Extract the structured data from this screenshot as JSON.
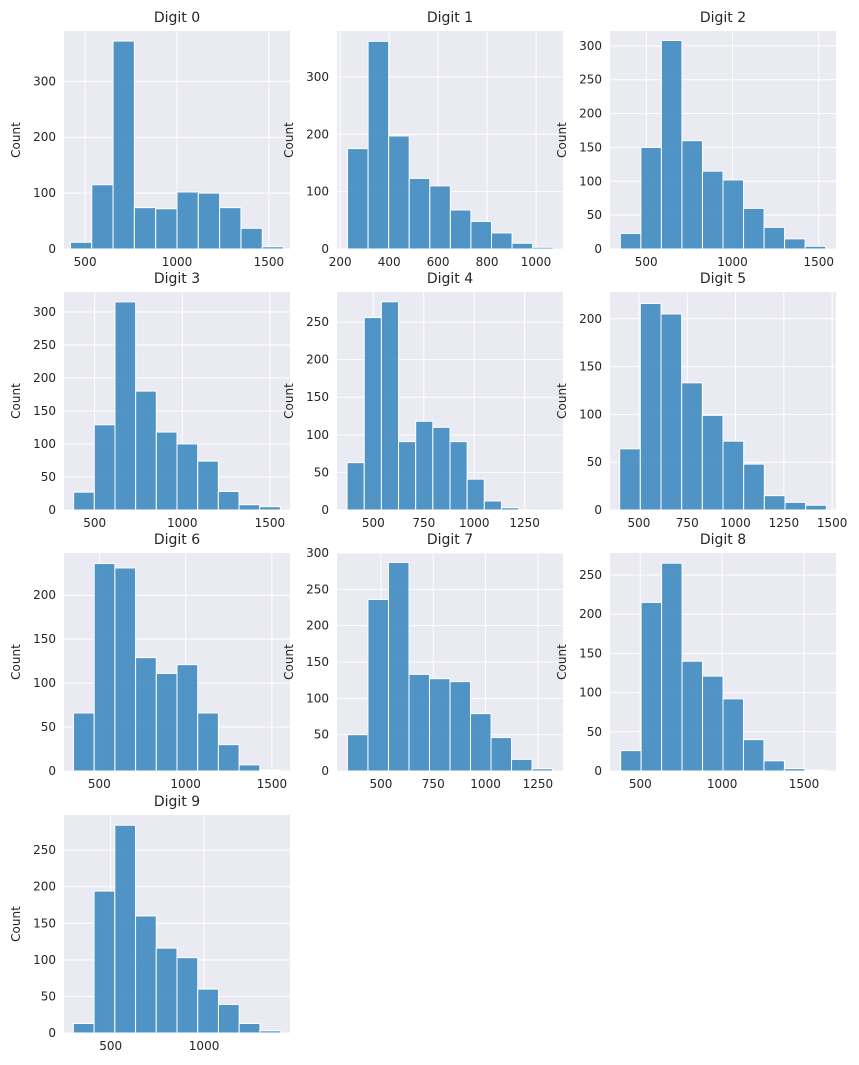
{
  "figure": {
    "background": "#ffffff",
    "plot_background": "#eaeaf2",
    "grid_color": "#ffffff",
    "bar_color": "#3a87bf"
  },
  "chart_data": [
    {
      "type": "bar",
      "title": "Digit 0",
      "xlabel": "",
      "ylabel": "Count",
      "bins": [
        [
          420,
          536
        ],
        [
          536,
          652
        ],
        [
          652,
          768
        ],
        [
          768,
          884
        ],
        [
          884,
          1000
        ],
        [
          1000,
          1116
        ],
        [
          1116,
          1232
        ],
        [
          1232,
          1348
        ],
        [
          1348,
          1464
        ],
        [
          1464,
          1580
        ]
      ],
      "values": [
        12,
        115,
        372,
        74,
        72,
        102,
        100,
        74,
        37,
        4
      ],
      "xlim": [
        385,
        1615
      ],
      "ylim": [
        0,
        390
      ],
      "xticks": [
        500,
        1000,
        1500
      ],
      "yticks": [
        0,
        100,
        200,
        300
      ],
      "grid": true
    },
    {
      "type": "bar",
      "title": "Digit 1",
      "xlabel": "",
      "ylabel": "Count",
      "bins": [
        [
          230,
          314
        ],
        [
          314,
          398
        ],
        [
          398,
          482
        ],
        [
          482,
          566
        ],
        [
          566,
          650
        ],
        [
          650,
          734
        ],
        [
          734,
          818
        ],
        [
          818,
          902
        ],
        [
          902,
          986
        ],
        [
          986,
          1070
        ]
      ],
      "values": [
        175,
        362,
        197,
        123,
        110,
        68,
        48,
        28,
        10,
        3
      ],
      "xlim": [
        187,
        1110
      ],
      "ylim": [
        0,
        380
      ],
      "xticks": [
        200,
        400,
        600,
        800,
        1000
      ],
      "yticks": [
        0,
        100,
        200,
        300
      ],
      "grid": true
    },
    {
      "type": "bar",
      "title": "Digit 2",
      "xlabel": "",
      "ylabel": "Count",
      "bins": [
        [
          350,
          469
        ],
        [
          469,
          588
        ],
        [
          588,
          707
        ],
        [
          707,
          826
        ],
        [
          826,
          945
        ],
        [
          945,
          1064
        ],
        [
          1064,
          1183
        ],
        [
          1183,
          1302
        ],
        [
          1302,
          1421
        ],
        [
          1421,
          1540
        ]
      ],
      "values": [
        23,
        150,
        308,
        160,
        115,
        102,
        60,
        32,
        15,
        4
      ],
      "xlim": [
        290,
        1600
      ],
      "ylim": [
        0,
        322
      ],
      "xticks": [
        500,
        1000,
        1500
      ],
      "yticks": [
        0,
        50,
        100,
        150,
        200,
        250,
        300
      ],
      "grid": true
    },
    {
      "type": "bar",
      "title": "Digit 3",
      "xlabel": "",
      "ylabel": "Count",
      "bins": [
        [
          380,
          498
        ],
        [
          498,
          616
        ],
        [
          616,
          734
        ],
        [
          734,
          852
        ],
        [
          852,
          970
        ],
        [
          970,
          1088
        ],
        [
          1088,
          1206
        ],
        [
          1206,
          1324
        ],
        [
          1324,
          1442
        ],
        [
          1442,
          1560
        ]
      ],
      "values": [
        27,
        129,
        315,
        180,
        118,
        100,
        74,
        28,
        8,
        5
      ],
      "xlim": [
        325,
        1615
      ],
      "ylim": [
        0,
        330
      ],
      "xticks": [
        500,
        1000,
        1500
      ],
      "yticks": [
        0,
        50,
        100,
        150,
        200,
        250,
        300
      ],
      "grid": true
    },
    {
      "type": "bar",
      "title": "Digit 4",
      "xlabel": "",
      "ylabel": "Count",
      "bins": [
        [
          370,
          455
        ],
        [
          455,
          540
        ],
        [
          540,
          625
        ],
        [
          625,
          710
        ],
        [
          710,
          795
        ],
        [
          795,
          880
        ],
        [
          880,
          965
        ],
        [
          965,
          1050
        ],
        [
          1050,
          1135
        ],
        [
          1135,
          1220
        ],
        [
          1220,
          1305
        ],
        [
          1305,
          1390
        ]
      ],
      "values": [
        63,
        256,
        277,
        91,
        118,
        110,
        91,
        41,
        12,
        3,
        0,
        0
      ],
      "xlim": [
        320,
        1440
      ],
      "ylim": [
        0,
        290
      ],
      "xticks": [
        500,
        750,
        1000,
        1250
      ],
      "yticks": [
        0,
        50,
        100,
        150,
        200,
        250
      ],
      "grid": true
    },
    {
      "type": "bar",
      "title": "Digit 5",
      "xlabel": "",
      "ylabel": "Count",
      "bins": [
        [
          400,
          507
        ],
        [
          507,
          614
        ],
        [
          614,
          721
        ],
        [
          721,
          828
        ],
        [
          828,
          935
        ],
        [
          935,
          1042
        ],
        [
          1042,
          1149
        ],
        [
          1149,
          1256
        ],
        [
          1256,
          1363
        ],
        [
          1363,
          1470
        ]
      ],
      "values": [
        64,
        216,
        205,
        133,
        99,
        72,
        48,
        15,
        8,
        5
      ],
      "xlim": [
        350,
        1520
      ],
      "ylim": [
        0,
        228
      ],
      "xticks": [
        500,
        750,
        1000,
        1250,
        1500
      ],
      "yticks": [
        0,
        50,
        100,
        150,
        200
      ],
      "grid": true
    },
    {
      "type": "bar",
      "title": "Digit 6",
      "xlabel": "",
      "ylabel": "Count",
      "bins": [
        [
          350,
          470
        ],
        [
          470,
          590
        ],
        [
          590,
          710
        ],
        [
          710,
          830
        ],
        [
          830,
          950
        ],
        [
          950,
          1070
        ],
        [
          1070,
          1190
        ],
        [
          1190,
          1310
        ],
        [
          1310,
          1430
        ],
        [
          1430,
          1550
        ]
      ],
      "values": [
        66,
        236,
        231,
        129,
        111,
        121,
        66,
        30,
        7,
        1
      ],
      "xlim": [
        295,
        1605
      ],
      "ylim": [
        0,
        248
      ],
      "xticks": [
        500,
        1000,
        1500
      ],
      "yticks": [
        0,
        50,
        100,
        150,
        200
      ],
      "grid": true
    },
    {
      "type": "bar",
      "title": "Digit 7",
      "xlabel": "",
      "ylabel": "Count",
      "bins": [
        [
          340,
          438
        ],
        [
          438,
          536
        ],
        [
          536,
          634
        ],
        [
          634,
          732
        ],
        [
          732,
          830
        ],
        [
          830,
          928
        ],
        [
          928,
          1026
        ],
        [
          1026,
          1124
        ],
        [
          1124,
          1222
        ],
        [
          1222,
          1320
        ]
      ],
      "values": [
        50,
        236,
        287,
        133,
        127,
        123,
        79,
        46,
        16,
        3
      ],
      "xlim": [
        290,
        1370
      ],
      "ylim": [
        0,
        300
      ],
      "xticks": [
        500,
        750,
        1000,
        1250
      ],
      "yticks": [
        0,
        50,
        100,
        150,
        200,
        250,
        300
      ],
      "grid": true
    },
    {
      "type": "bar",
      "title": "Digit 8",
      "xlabel": "",
      "ylabel": "Count",
      "bins": [
        [
          380,
          505
        ],
        [
          505,
          630
        ],
        [
          630,
          755
        ],
        [
          755,
          880
        ],
        [
          880,
          1005
        ],
        [
          1005,
          1130
        ],
        [
          1130,
          1255
        ],
        [
          1255,
          1380
        ],
        [
          1380,
          1505
        ],
        [
          1505,
          1630
        ]
      ],
      "values": [
        26,
        215,
        265,
        140,
        121,
        92,
        40,
        13,
        3,
        1
      ],
      "xlim": [
        315,
        1695
      ],
      "ylim": [
        0,
        278
      ],
      "xticks": [
        500,
        1000,
        1500
      ],
      "yticks": [
        0,
        50,
        100,
        150,
        200,
        250
      ],
      "grid": true
    },
    {
      "type": "bar",
      "title": "Digit 9",
      "xlabel": "",
      "ylabel": "Count",
      "bins": [
        [
          300,
          411
        ],
        [
          411,
          522
        ],
        [
          522,
          633
        ],
        [
          633,
          744
        ],
        [
          744,
          855
        ],
        [
          855,
          966
        ],
        [
          966,
          1077
        ],
        [
          1077,
          1188
        ],
        [
          1188,
          1299
        ],
        [
          1299,
          1410
        ]
      ],
      "values": [
        13,
        194,
        284,
        160,
        116,
        103,
        60,
        39,
        13,
        3
      ],
      "xlim": [
        250,
        1460
      ],
      "ylim": [
        0,
        298
      ],
      "xticks": [
        500,
        1000
      ],
      "yticks": [
        0,
        50,
        100,
        150,
        200,
        250
      ],
      "grid": true
    }
  ]
}
